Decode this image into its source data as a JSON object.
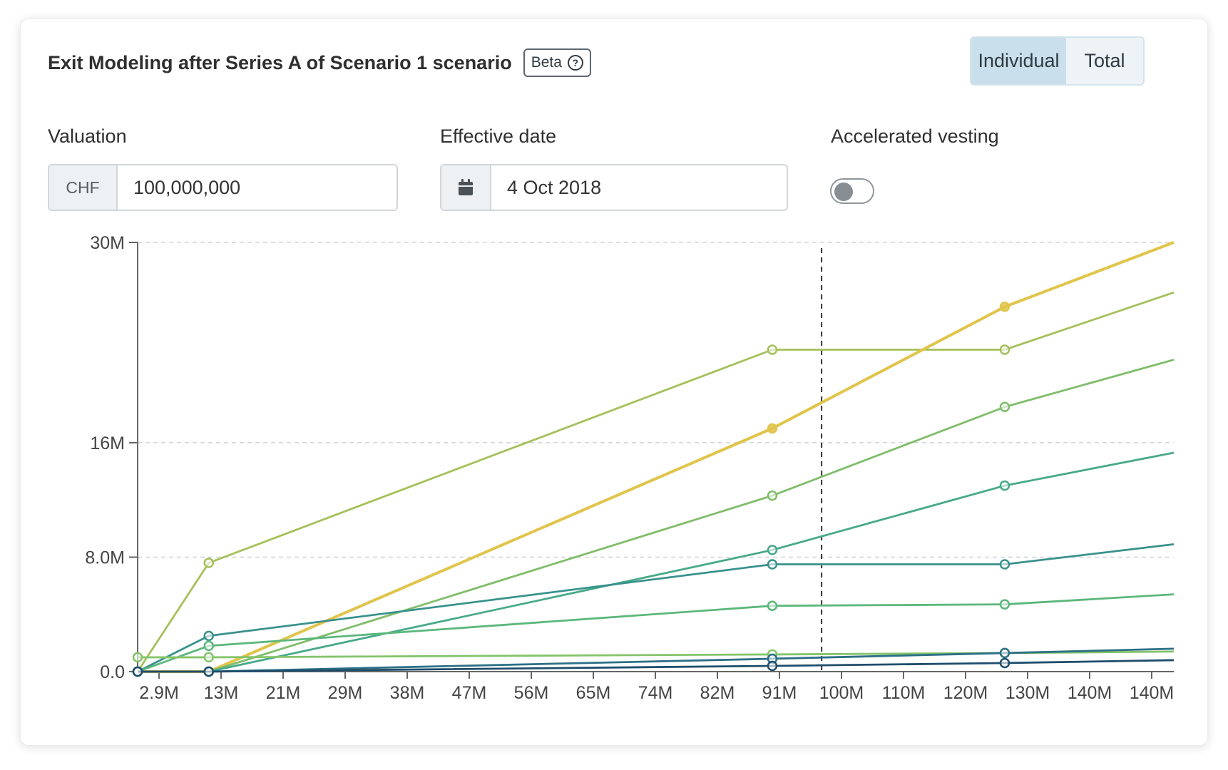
{
  "header": {
    "title": "Exit Modeling after Series A of Scenario 1 scenario",
    "beta_label": "Beta",
    "help_glyph": "?"
  },
  "view_toggle": {
    "options": [
      "Individual",
      "Total"
    ],
    "selected": "Individual"
  },
  "form": {
    "valuation": {
      "label": "Valuation",
      "currency": "CHF",
      "value": "100,000,000"
    },
    "effective_date": {
      "label": "Effective date",
      "value": "4 Oct 2018",
      "icon": "calendar-icon"
    },
    "accelerated_vesting": {
      "label": "Accelerated vesting",
      "enabled": false
    }
  },
  "colors": {
    "accent_toggle": "#c9dfec",
    "series": [
      "#a5c05a",
      "#e1c44a",
      "#7fbd6a",
      "#47a98a",
      "#39918c",
      "#5cb77c",
      "#84c46a",
      "#2c6f86",
      "#1f4d6b"
    ]
  },
  "chart_data": {
    "type": "line",
    "x": [
      2900000,
      13000000,
      93000000,
      126000000,
      150000000
    ],
    "x_tick_labels": [
      "2.9M",
      "13M",
      "21M",
      "29M",
      "38M",
      "47M",
      "56M",
      "65M",
      "74M",
      "82M",
      "91M",
      "100M",
      "110M",
      "120M",
      "130M",
      "140M",
      "140M"
    ],
    "y_tick_labels": [
      "0.0",
      "8.0M",
      "16M",
      "30M"
    ],
    "y_ticks": [
      0,
      8000000,
      16000000,
      30000000
    ],
    "ylim": [
      0,
      30000000
    ],
    "grid": true,
    "reference_line_x": 100000000,
    "series": [
      {
        "values": [
          0,
          7600000,
          22500000,
          22500000,
          26500000
        ]
      },
      {
        "values": [
          0,
          0,
          17000000,
          25500000,
          30000000
        ]
      },
      {
        "values": [
          0,
          0,
          12300000,
          18500000,
          21800000
        ]
      },
      {
        "values": [
          0,
          0,
          8500000,
          13000000,
          15300000
        ]
      },
      {
        "values": [
          0,
          2500000,
          7500000,
          7500000,
          8900000
        ]
      },
      {
        "values": [
          0,
          1800000,
          4600000,
          4700000,
          5400000
        ]
      },
      {
        "values": [
          1000000,
          1000000,
          1200000,
          1300000,
          1400000
        ]
      },
      {
        "values": [
          0,
          0,
          900000,
          1300000,
          1600000
        ]
      },
      {
        "values": [
          0,
          0,
          400000,
          600000,
          800000
        ]
      }
    ]
  }
}
